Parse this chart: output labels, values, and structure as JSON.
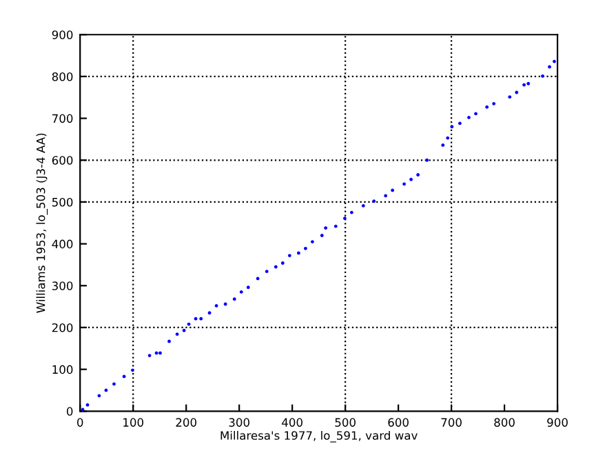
{
  "chart_data": {
    "type": "scatter",
    "xlabel": "Millaresa's 1977, lo_591, vard wav",
    "ylabel": "Williams 1953, lo_503 (J3-4 AA)",
    "xlim": [
      0,
      900
    ],
    "ylim": [
      0,
      900
    ],
    "xticks": [
      0,
      100,
      200,
      300,
      400,
      500,
      600,
      700,
      800,
      900
    ],
    "yticks": [
      0,
      100,
      200,
      300,
      400,
      500,
      600,
      700,
      800,
      900
    ],
    "grid": false,
    "marker": "circle",
    "ref_lines": [
      {
        "axis": "x",
        "value": 100,
        "line_style": "dotted",
        "color": "#000000"
      },
      {
        "axis": "x",
        "value": 500,
        "line_style": "dotted",
        "color": "#000000"
      },
      {
        "axis": "x",
        "value": 700,
        "line_style": "dotted",
        "color": "#000000"
      },
      {
        "axis": "y",
        "value": 200,
        "line_style": "dotted",
        "color": "#000000"
      },
      {
        "axis": "y",
        "value": 500,
        "line_style": "dotted",
        "color": "#000000"
      },
      {
        "axis": "y",
        "value": 600,
        "line_style": "dotted",
        "color": "#000000"
      },
      {
        "axis": "y",
        "value": 800,
        "line_style": "dotted",
        "color": "#000000"
      }
    ],
    "series": [
      {
        "color": "#0000ff",
        "x": [
          5,
          14,
          36,
          49,
          64,
          83,
          99,
          131,
          144,
          151,
          168,
          183,
          196,
          205,
          218,
          228,
          244,
          257,
          274,
          291,
          304,
          317,
          335,
          352,
          369,
          382,
          395,
          412,
          425,
          438,
          456,
          463,
          482,
          499,
          512,
          534,
          554,
          576,
          589,
          611,
          624,
          637,
          654,
          684,
          693,
          701,
          716,
          733,
          746,
          767,
          780,
          810,
          823,
          837,
          845,
          872,
          885,
          894
        ],
        "values": [
          4,
          15,
          37,
          50,
          65,
          83,
          98,
          133,
          139,
          139,
          167,
          184,
          193,
          208,
          221,
          221,
          235,
          252,
          256,
          268,
          285,
          296,
          317,
          334,
          345,
          354,
          372,
          378,
          389,
          405,
          420,
          438,
          442,
          461,
          475,
          491,
          502,
          515,
          528,
          543,
          554,
          565,
          600,
          636,
          653,
          680,
          688,
          702,
          711,
          727,
          735,
          751,
          762,
          780,
          783,
          801,
          823,
          836
        ]
      }
    ]
  }
}
